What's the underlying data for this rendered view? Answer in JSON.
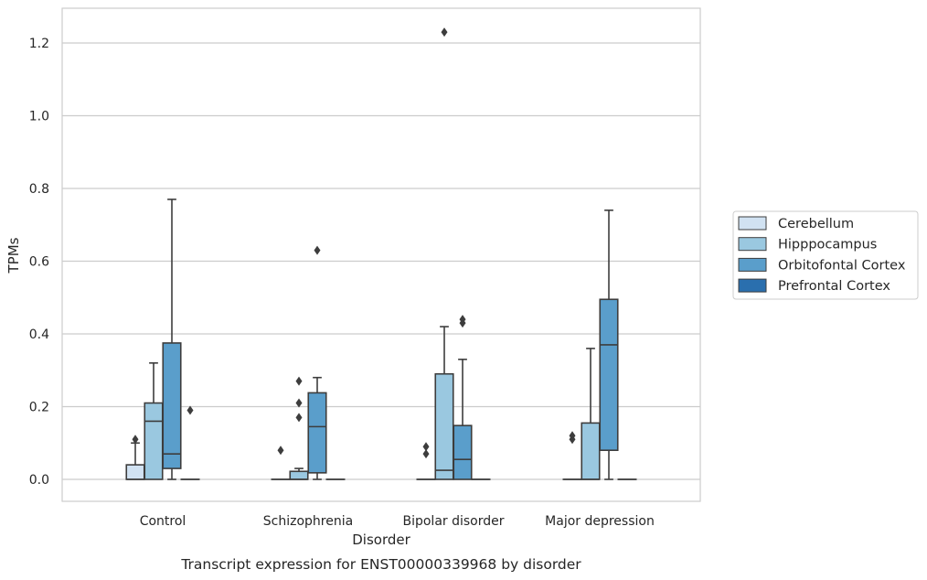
{
  "chart_data": {
    "type": "box",
    "title": "",
    "xlabel": "Disorder",
    "ylabel": "TPMs",
    "caption": "Transcript expression for ENST00000339968 by disorder",
    "ylim": [
      -0.06,
      1.29
    ],
    "yticks": [
      0.0,
      0.2,
      0.4,
      0.6,
      0.8,
      1.0,
      1.2
    ],
    "ytick_labels": [
      "0.0",
      "0.2",
      "0.4",
      "0.6",
      "0.8",
      "1.0",
      "1.2"
    ],
    "grid": "horizontal",
    "legend_position": "right",
    "categories": [
      "Control",
      "Schizophrenia",
      "Bipolar disorder",
      "Major depression"
    ],
    "series": [
      {
        "name": "Cerebellum",
        "color": "#d1e2f2",
        "boxes": [
          {
            "whislo": 0.0,
            "q1": 0.0,
            "med": 0.0,
            "q3": 0.04,
            "whishi": 0.1,
            "fliers": [
              0.11
            ]
          },
          {
            "whislo": 0.0,
            "q1": 0.0,
            "med": 0.0,
            "q3": 0.0,
            "whishi": 0.0,
            "fliers": [
              0.08
            ]
          },
          {
            "whislo": 0.0,
            "q1": 0.0,
            "med": 0.0,
            "q3": 0.0,
            "whishi": 0.0,
            "fliers": [
              0.07,
              0.09
            ]
          },
          {
            "whislo": 0.0,
            "q1": 0.0,
            "med": 0.0,
            "q3": 0.0,
            "whishi": 0.0,
            "fliers": [
              0.11,
              0.12
            ]
          }
        ]
      },
      {
        "name": "Hipppocampus",
        "color": "#9ac8e0",
        "boxes": [
          {
            "whislo": 0.0,
            "q1": 0.0,
            "med": 0.16,
            "q3": 0.21,
            "whishi": 0.32,
            "fliers": []
          },
          {
            "whislo": 0.0,
            "q1": 0.0,
            "med": 0.0,
            "q3": 0.022,
            "whishi": 0.03,
            "fliers": [
              0.17,
              0.21,
              0.27
            ]
          },
          {
            "whislo": 0.0,
            "q1": 0.0,
            "med": 0.025,
            "q3": 0.29,
            "whishi": 0.42,
            "fliers": [
              1.23
            ]
          },
          {
            "whislo": 0.0,
            "q1": 0.0,
            "med": 0.0,
            "q3": 0.155,
            "whishi": 0.36,
            "fliers": []
          }
        ]
      },
      {
        "name": "Orbitofontal Cortex",
        "color": "#5a9ecb",
        "boxes": [
          {
            "whislo": 0.0,
            "q1": 0.03,
            "med": 0.07,
            "q3": 0.375,
            "whishi": 0.77,
            "fliers": []
          },
          {
            "whislo": 0.0,
            "q1": 0.018,
            "med": 0.145,
            "q3": 0.238,
            "whishi": 0.28,
            "fliers": [
              0.63
            ]
          },
          {
            "whislo": 0.0,
            "q1": 0.0,
            "med": 0.055,
            "q3": 0.148,
            "whishi": 0.33,
            "fliers": [
              0.43,
              0.44
            ]
          },
          {
            "whislo": 0.0,
            "q1": 0.08,
            "med": 0.37,
            "q3": 0.495,
            "whishi": 0.74,
            "fliers": []
          }
        ]
      },
      {
        "name": "Prefrontal Cortex",
        "color": "#2a6fae",
        "boxes": [
          {
            "whislo": 0.0,
            "q1": 0.0,
            "med": 0.0,
            "q3": 0.0,
            "whishi": 0.0,
            "fliers": [
              0.19
            ]
          },
          {
            "whislo": 0.0,
            "q1": 0.0,
            "med": 0.0,
            "q3": 0.0,
            "whishi": 0.0,
            "fliers": []
          },
          {
            "whislo": 0.0,
            "q1": 0.0,
            "med": 0.0,
            "q3": 0.0,
            "whishi": 0.0,
            "fliers": []
          },
          {
            "whislo": 0.0,
            "q1": 0.0,
            "med": 0.0,
            "q3": 0.0,
            "whishi": 0.0,
            "fliers": []
          }
        ]
      }
    ]
  }
}
